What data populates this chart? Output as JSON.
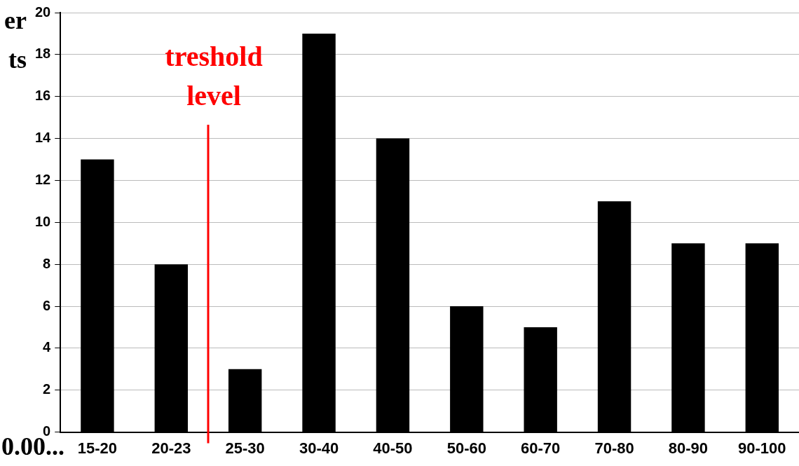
{
  "chart_data": {
    "type": "bar",
    "categories": [
      "15-20",
      "20-23",
      "25-30",
      "30-40",
      "40-50",
      "50-60",
      "60-70",
      "70-80",
      "80-90",
      "90-100"
    ],
    "values": [
      13,
      8,
      3,
      19,
      14,
      6,
      5,
      11,
      9,
      9
    ],
    "color": "#000000",
    "ylim": [
      0,
      20
    ],
    "yticks": [
      0,
      2,
      4,
      6,
      8,
      10,
      12,
      14,
      16,
      18,
      20
    ],
    "grid": "y",
    "annotations": [
      "treshold level",
      "er",
      "ts",
      "0.00..."
    ]
  }
}
